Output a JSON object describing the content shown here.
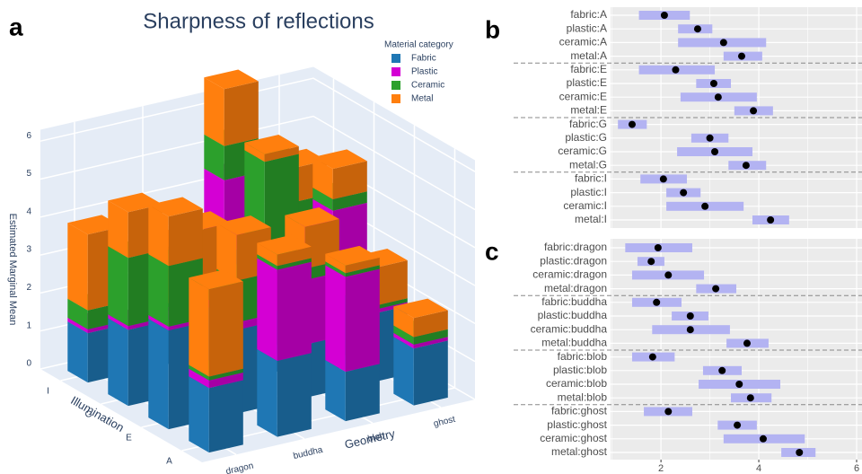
{
  "chart_data": [
    {
      "type": "bar3d",
      "panel": "a",
      "title": "Sharpness of reflections",
      "x_title": "Geometry",
      "y_title": "Illumination",
      "z_title": "Estimated Marginal Mean",
      "x_categories": [
        "dragon",
        "buddha",
        "blob",
        "ghost"
      ],
      "y_categories": [
        "I",
        "G",
        "E",
        "A"
      ],
      "zlim": [
        0,
        6.3
      ],
      "zticks": [
        0,
        1,
        2,
        3,
        4,
        5,
        6
      ],
      "grid": true,
      "legend_title": "Material category",
      "legend": "top-right",
      "series": [
        {
          "name": "Fabric",
          "color": "#1f77b4",
          "values": [
            [
              1.3,
              1.2,
              2.6,
              2.0
            ],
            [
              2.0,
              2.1,
              1.6,
              1.6
            ],
            [
              2.6,
              2.2,
              1.4,
              1.8
            ],
            [
              1.7,
              2.0,
              1.3,
              1.5
            ]
          ]
        },
        {
          "name": "Plastic",
          "color": "#d400d4",
          "values": [
            [
              0.1,
              0.3,
              1.9,
              0.9
            ],
            [
              0.1,
              0.2,
              1.0,
              2.3
            ],
            [
              0.1,
              0.2,
              1.7,
              0.1
            ],
            [
              0.2,
              2.4,
              2.5,
              0.1
            ]
          ]
        },
        {
          "name": "Ceramic",
          "color": "#2ca02c",
          "values": [
            [
              0.5,
              0.1,
              0.9,
              0.6
            ],
            [
              1.8,
              0.3,
              3.0,
              0.3
            ],
            [
              1.6,
              1.1,
              0.3,
              0.1
            ],
            [
              0.1,
              0.1,
              0.1,
              0.2
            ]
          ]
        },
        {
          "name": "Metal",
          "color": "#ff7f0e",
          "values": [
            [
              2.0,
              1.5,
              1.5,
              0.9
            ],
            [
              1.2,
              1.6,
              0.2,
              0.8
            ],
            [
              1.3,
              1.2,
              1.1,
              1.0
            ],
            [
              2.3,
              0.3,
              0.2,
              0.5
            ]
          ]
        }
      ]
    },
    {
      "type": "pointrange",
      "panel": "b",
      "xlim": [
        0.97,
        6.11
      ],
      "color": "#b3b3f2",
      "point_color": "#000000",
      "groups": [
        {
          "categories": [
            "fabric:A",
            "plastic:A",
            "ceramic:A",
            "metal:A"
          ],
          "values": [
            2.07,
            2.75,
            3.28,
            3.65
          ],
          "lower": [
            1.55,
            2.35,
            2.35,
            3.28
          ],
          "upper": [
            2.59,
            3.05,
            4.15,
            4.07
          ]
        },
        {
          "categories": [
            "fabric:E",
            "plastic:E",
            "ceramic:E",
            "metal:E"
          ],
          "values": [
            2.3,
            3.08,
            3.17,
            3.89
          ],
          "lower": [
            1.55,
            2.72,
            2.4,
            3.5
          ],
          "upper": [
            3.1,
            3.43,
            3.96,
            4.29
          ]
        },
        {
          "categories": [
            "fabric:G",
            "plastic:G",
            "ceramic:G",
            "metal:G"
          ],
          "values": [
            1.41,
            3.0,
            3.1,
            3.74
          ],
          "lower": [
            1.12,
            2.62,
            2.33,
            3.38
          ],
          "upper": [
            1.71,
            3.38,
            3.87,
            4.15
          ]
        },
        {
          "categories": [
            "fabric:I",
            "plastic:I",
            "ceramic:I",
            "metal:I"
          ],
          "values": [
            2.05,
            2.46,
            2.9,
            4.24
          ],
          "lower": [
            1.58,
            2.11,
            2.11,
            3.87
          ],
          "upper": [
            2.53,
            2.81,
            3.69,
            4.62
          ]
        }
      ]
    },
    {
      "type": "pointrange",
      "panel": "c",
      "xlim": [
        0.97,
        6.11
      ],
      "xticks": [
        2,
        4,
        6
      ],
      "minor_xticks": [
        1,
        3,
        5
      ],
      "color": "#b3b3f2",
      "point_color": "#000000",
      "groups": [
        {
          "categories": [
            "fabric:dragon",
            "plastic:dragon",
            "ceramic:dragon",
            "metal:dragon"
          ],
          "values": [
            1.94,
            1.8,
            2.15,
            3.12
          ],
          "lower": [
            1.27,
            1.52,
            1.41,
            2.72
          ],
          "upper": [
            2.64,
            2.07,
            2.88,
            3.54
          ]
        },
        {
          "categories": [
            "fabric:buddha",
            "plastic:buddha",
            "ceramic:buddha",
            "metal:buddha"
          ],
          "values": [
            1.91,
            2.6,
            2.6,
            3.76
          ],
          "lower": [
            1.41,
            2.22,
            1.82,
            3.34
          ],
          "upper": [
            2.42,
            2.97,
            3.41,
            4.2
          ]
        },
        {
          "categories": [
            "fabric:blob",
            "plastic:blob",
            "ceramic:blob",
            "metal:blob"
          ],
          "values": [
            1.83,
            3.25,
            3.6,
            3.83
          ],
          "lower": [
            1.41,
            2.86,
            2.77,
            3.43
          ],
          "upper": [
            2.28,
            3.65,
            4.44,
            4.26
          ]
        },
        {
          "categories": [
            "fabric:ghost",
            "plastic:ghost",
            "ceramic:ghost",
            "metal:ghost"
          ],
          "values": [
            2.15,
            3.56,
            4.09,
            4.83
          ],
          "lower": [
            1.65,
            3.16,
            3.28,
            4.46
          ],
          "upper": [
            2.64,
            3.96,
            4.94,
            5.16
          ]
        }
      ]
    }
  ]
}
